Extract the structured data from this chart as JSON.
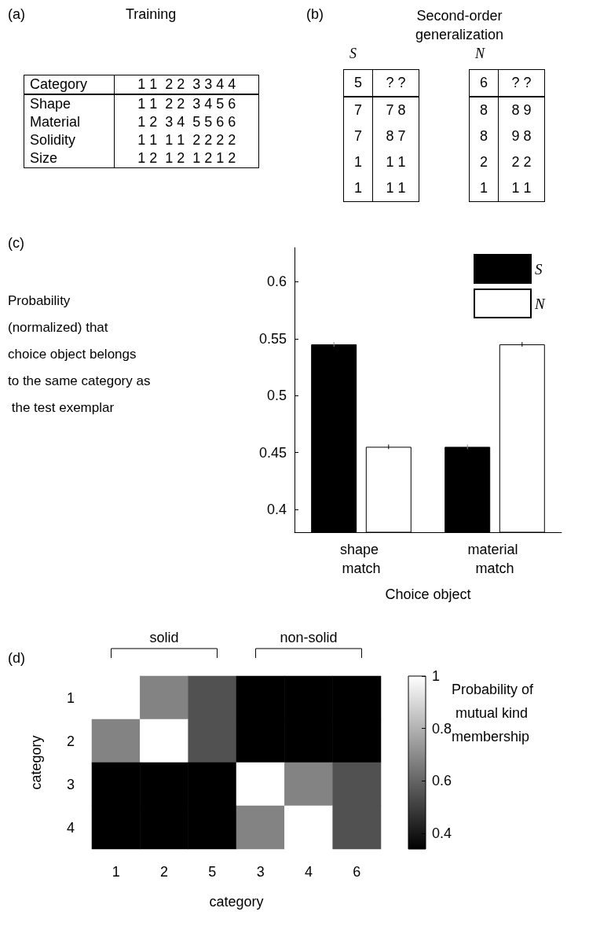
{
  "chart_data": [
    {
      "type": "other",
      "title": "Training",
      "annotations": [
        "(a)",
        "Category",
        "1 1  2 2  3 3 4 4",
        "Shape",
        "1 1  2 2  3 4 5 6",
        "Material",
        "1 2  3 4  5 5 6 6",
        "Solidity",
        "1 1  1 1  2 2 2 2",
        "Size",
        "1 2  1 2  1 2 1 2"
      ]
    },
    {
      "type": "other",
      "title": "Second-order generalization",
      "annotations": [
        "(b)",
        "S",
        "5",
        "? ?",
        "7",
        "7 8",
        "7",
        "8 7",
        "1",
        "1 1",
        "1",
        "1 1",
        "N",
        "6",
        "? ?",
        "8",
        "8 9",
        "8",
        "9 8",
        "2",
        "2 2",
        "1",
        "1 1"
      ]
    },
    {
      "type": "bar",
      "categories": [
        "shape match",
        "material match"
      ],
      "series": [
        {
          "name": "S",
          "color": "#000000",
          "values": [
            0.545,
            0.455
          ],
          "errors": [
            0.002,
            0.002
          ]
        },
        {
          "name": "N",
          "color": "#ffffff",
          "values": [
            0.455,
            0.545
          ],
          "errors": [
            0.002,
            0.002
          ]
        }
      ],
      "ylim": [
        0.38,
        0.63
      ],
      "yticks": [
        0.4,
        0.45,
        0.5,
        0.55,
        0.6
      ],
      "xlabel": "Choice object",
      "ylabel": "Probability (normalized) that choice object belongs to the same category as the test exemplar",
      "legend": "top right",
      "annotations": [
        "(c)"
      ]
    },
    {
      "type": "heatmap",
      "categories": [
        "1",
        "2",
        "5",
        "3",
        "4",
        "6"
      ],
      "y_categories": [
        "1",
        "2",
        "3",
        "4"
      ],
      "cells": [
        [
          1,
          0.68,
          0.55,
          0.34,
          0.34,
          0.34
        ],
        [
          0.68,
          1,
          0.55,
          0.34,
          0.34,
          0.34
        ],
        [
          0.34,
          0.34,
          0.34,
          1,
          0.68,
          0.55
        ],
        [
          0.34,
          0.34,
          0.34,
          0.68,
          1,
          0.55
        ]
      ],
      "clim": [
        0.34,
        1
      ],
      "cticks": [
        0.4,
        0.6,
        0.8,
        1
      ],
      "clabel": "Probability of mutual kind membership",
      "xlabel": "category",
      "ylabel": "category",
      "annotations": [
        "(d)",
        "solid",
        "non-solid"
      ]
    }
  ]
}
